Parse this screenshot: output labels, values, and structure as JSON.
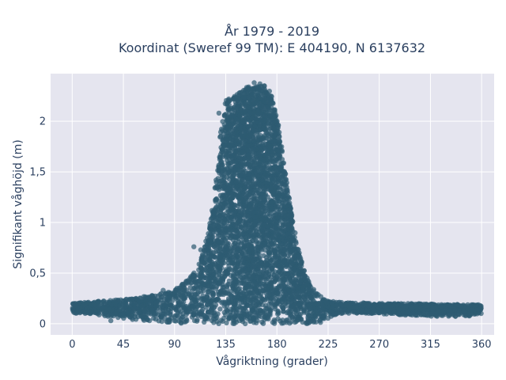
{
  "chart_data": {
    "type": "scatter",
    "title": "År 1979 - 2019",
    "subtitle": "Koordinat (Sweref 99 TM): E 404190, N 6137632",
    "xlabel": "Vågriktning (grader)",
    "ylabel": "Signifikant våghöjd (m)",
    "xlim": [
      -19,
      371
    ],
    "ylim": [
      -0.11,
      2.47
    ],
    "xticks": [
      0,
      45,
      90,
      135,
      180,
      225,
      270,
      315,
      360
    ],
    "yticks": [
      0,
      0.5,
      1,
      1.5,
      2
    ],
    "ytick_labels": [
      "0",
      "0,5",
      "1",
      "1,5",
      "2"
    ],
    "grid": true,
    "marker_color": "#2e5b72",
    "background_color": "#e5e5ef",
    "point_count": 6000,
    "envelope": {
      "x": [
        0,
        20,
        45,
        70,
        90,
        100,
        110,
        115,
        118,
        122,
        125,
        128,
        130,
        132,
        135,
        140,
        145,
        150,
        155,
        160,
        165,
        170,
        175,
        178,
        180,
        183,
        186,
        190,
        195,
        200,
        205,
        210,
        215,
        220,
        225,
        230,
        240,
        250,
        270,
        300,
        330,
        360
      ],
      "ymin": [
        0.1,
        0.09,
        0.05,
        0.02,
        0.0,
        0.0,
        0.0,
        0.0,
        0.0,
        0.0,
        0.0,
        0.0,
        0.0,
        0.0,
        0.0,
        0.0,
        0.0,
        0.0,
        0.0,
        0.0,
        0.0,
        0.0,
        0.0,
        0.0,
        0.0,
        0.0,
        0.0,
        0.0,
        0.0,
        0.0,
        0.0,
        0.0,
        0.0,
        0.02,
        0.05,
        0.08,
        0.1,
        0.1,
        0.1,
        0.08,
        0.07,
        0.08
      ],
      "ymax": [
        0.2,
        0.22,
        0.24,
        0.28,
        0.33,
        0.42,
        0.55,
        0.7,
        0.85,
        1.05,
        1.3,
        1.55,
        1.85,
        2.05,
        2.2,
        2.25,
        2.28,
        2.3,
        2.35,
        2.33,
        2.37,
        2.35,
        2.28,
        2.15,
        2.05,
        1.85,
        1.6,
        1.3,
        0.95,
        0.7,
        0.5,
        0.38,
        0.3,
        0.26,
        0.23,
        0.22,
        0.21,
        0.21,
        0.2,
        0.2,
        0.19,
        0.19
      ]
    },
    "outliers": [
      {
        "x": 34,
        "y": 0.03
      },
      {
        "x": 80,
        "y": 0.33
      },
      {
        "x": 92,
        "y": 0.35
      },
      {
        "x": 98,
        "y": 0.38
      },
      {
        "x": 100,
        "y": 0.41
      },
      {
        "x": 107,
        "y": 0.76
      },
      {
        "x": 113,
        "y": 0.73
      },
      {
        "x": 129,
        "y": 2.08
      },
      {
        "x": 160,
        "y": 2.38
      }
    ]
  }
}
